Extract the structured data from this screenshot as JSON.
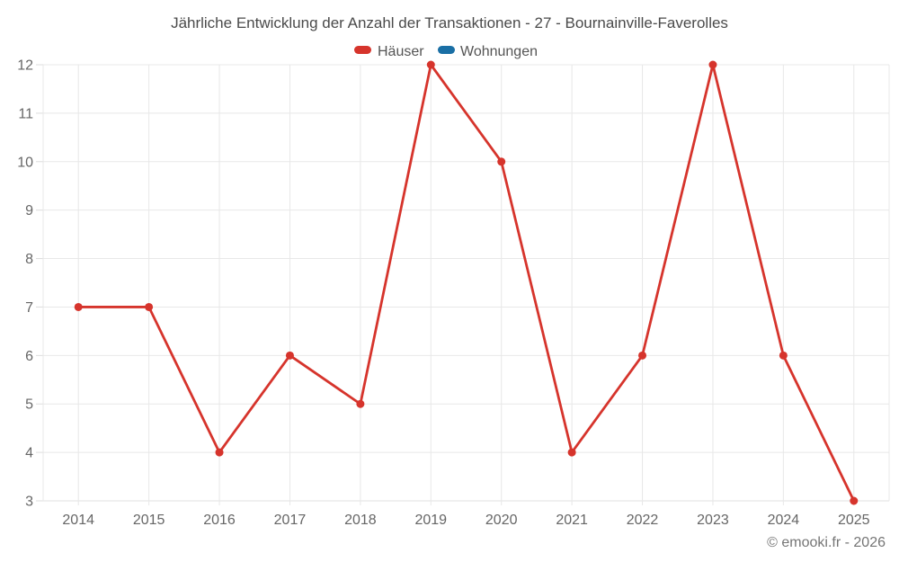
{
  "chart": {
    "title": "Jährliche Entwicklung der Anzahl der Transaktionen - 27 - Bournainville-Faverolles"
  },
  "chart_data": {
    "type": "line",
    "categories": [
      "2014",
      "2015",
      "2016",
      "2017",
      "2018",
      "2019",
      "2020",
      "2021",
      "2022",
      "2023",
      "2024",
      "2025"
    ],
    "series": [
      {
        "name": "Häuser",
        "color": "#d6342c",
        "values": [
          7,
          7,
          4,
          6,
          5,
          12,
          10,
          4,
          6,
          12,
          6,
          3
        ]
      },
      {
        "name": "Wohnungen",
        "color": "#1a6fa5",
        "values": []
      }
    ],
    "xlabel": "",
    "ylabel": "",
    "ylim": [
      3,
      12
    ],
    "ytick_step": 1,
    "grid": true,
    "legend_position": "top-center"
  },
  "footer": {
    "credit": "© emooki.fr - 2026"
  },
  "style": {
    "background": "#ffffff",
    "grid_color": "#e8e8e8",
    "axis_line_color": "#e0e0e0",
    "tick_color": "#dcdcdc",
    "axis_label_color": "#666666",
    "title_color": "#4a4a4a",
    "legend_label_color": "#555555",
    "footer_color": "#757575"
  }
}
